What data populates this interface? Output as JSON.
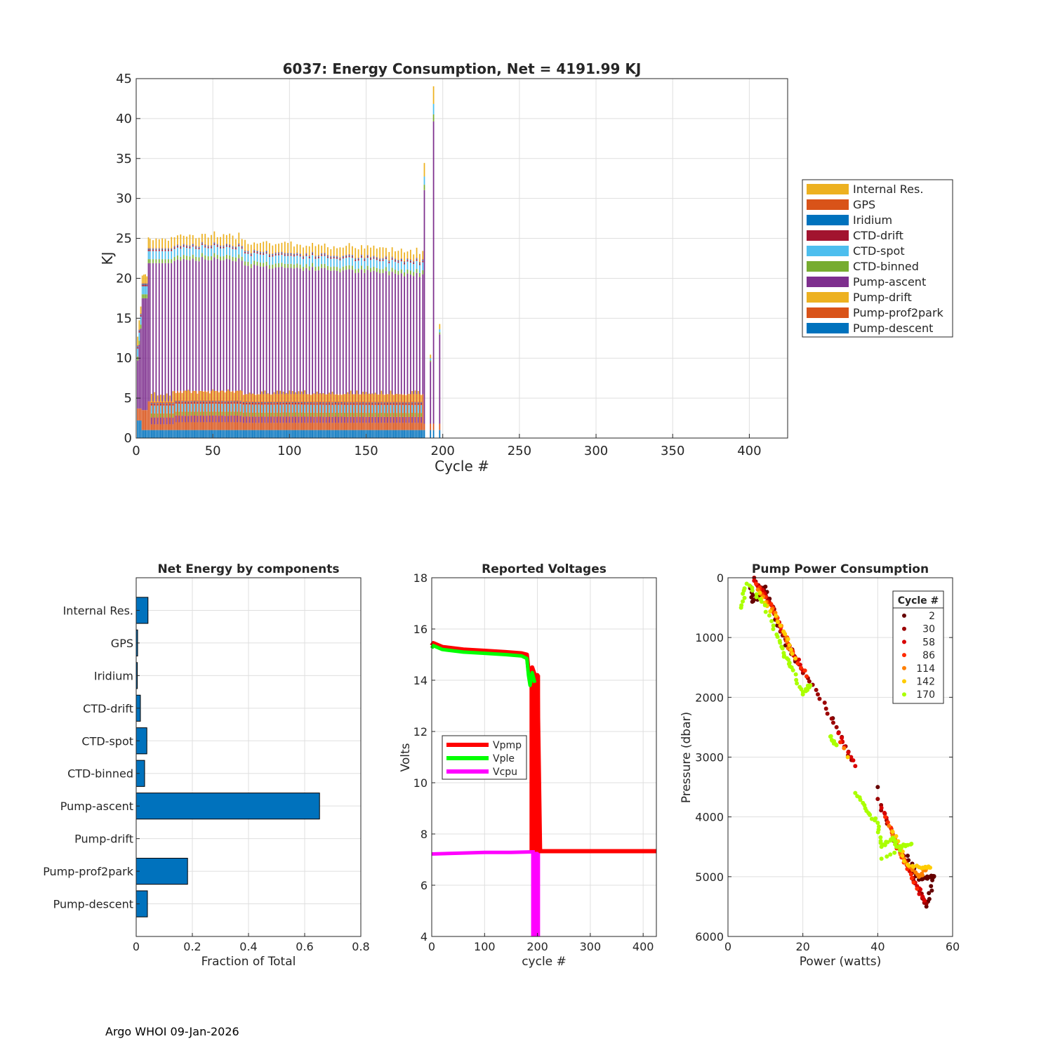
{
  "footer": "Argo WHOI 09-Jan-2026",
  "colors": {
    "Internal Res.": "#edb120",
    "GPS": "#d95319",
    "Iridium": "#0072bd",
    "CTD-drift": "#a2142f",
    "CTD-spot": "#4dbeee",
    "CTD-binned": "#77ac30",
    "Pump-ascent": "#7e2f8e",
    "Pump-drift": "#edb120",
    "Pump-prof2park": "#d95319",
    "Pump-descent": "#0072bd",
    "bar": "#0072bd",
    "Vpmp": "#ff0000",
    "Vple": "#00ff00",
    "Vcpu": "#ff00ff"
  },
  "chart_data": [
    {
      "type": "bar",
      "stacked": true,
      "title": "6037: Energy Consumption,  Net = 4191.99 KJ",
      "xlabel": "Cycle #",
      "ylabel": "KJ",
      "xlim": [
        0,
        425
      ],
      "ylim": [
        0,
        45
      ],
      "xticks": [
        0,
        50,
        100,
        150,
        200,
        250,
        300,
        350,
        400
      ],
      "yticks": [
        0,
        5,
        10,
        15,
        20,
        25,
        30,
        35,
        40,
        45
      ],
      "grid": true,
      "legend_location": "outside-right",
      "legend": [
        "Internal Res.",
        "GPS",
        "Iridium",
        "CTD-drift",
        "CTD-spot",
        "CTD-binned",
        "Pump-ascent",
        "Pump-drift",
        "Pump-prof2park",
        "Pump-descent"
      ],
      "typical_cycle_kJ": {
        "Pump-descent": 1.0,
        "Pump-prof2park": 4.5,
        "Pump-drift": 0.0,
        "Pump-ascent": 16.5,
        "CTD-binned": 0.5,
        "CTD-spot": 1.0,
        "CTD-drift": 0.2,
        "Iridium": 0.1,
        "GPS": 0.1,
        "Internal Res.": 1.0
      },
      "cycle_range": [
        1,
        188
      ],
      "typical_total_range": [
        22.5,
        25.5
      ],
      "outliers": [
        {
          "cycle": 188,
          "total": 34.0
        },
        {
          "cycle": 192,
          "total": 9.0
        },
        {
          "cycle": 194,
          "total": 44.0
        },
        {
          "cycle": 198,
          "total": 13.0
        }
      ]
    },
    {
      "type": "bar",
      "orientation": "horizontal",
      "title": "Net Energy by components",
      "xlabel": "Fraction of Total",
      "ylabel": "",
      "xlim": [
        0,
        0.8
      ],
      "xticks": [
        0,
        0.2,
        0.4,
        0.6,
        0.8
      ],
      "xtick_labels": [
        "0",
        "0.2",
        "0.4",
        "0.6",
        "0.8"
      ],
      "grid": true,
      "categories": [
        "Internal Res.",
        "GPS",
        "Iridium",
        "CTD-drift",
        "CTD-spot",
        "CTD-binned",
        "Pump-ascent",
        "Pump-drift",
        "Pump-prof2park",
        "Pump-descent"
      ],
      "values": [
        0.042,
        0.005,
        0.004,
        0.015,
        0.038,
        0.03,
        0.653,
        0.0,
        0.183,
        0.04
      ]
    },
    {
      "type": "line",
      "title": "Reported Voltages",
      "xlabel": "cycle #",
      "ylabel": "Volts",
      "xlim": [
        0,
        425
      ],
      "ylim": [
        4,
        18
      ],
      "xticks": [
        0,
        100,
        200,
        300,
        400
      ],
      "yticks": [
        4,
        6,
        8,
        10,
        12,
        14,
        16,
        18
      ],
      "grid": true,
      "legend_location": "left-middle",
      "series": [
        {
          "name": "Vpmp",
          "x": [
            0,
            3,
            20,
            60,
            100,
            140,
            170,
            180,
            183,
            186,
            190,
            195,
            200,
            205,
            425
          ],
          "y": [
            15.35,
            15.45,
            15.3,
            15.2,
            15.15,
            15.1,
            15.05,
            15.0,
            14.4,
            14.0,
            14.5,
            14.2,
            14.2,
            7.33,
            7.33
          ]
        },
        {
          "name": "Vple",
          "x": [
            0,
            3,
            20,
            60,
            100,
            140,
            170,
            180,
            183,
            186,
            190,
            195
          ],
          "y": [
            15.25,
            15.35,
            15.2,
            15.1,
            15.05,
            15.0,
            14.95,
            14.85,
            14.2,
            13.8,
            14.3,
            13.9
          ]
        },
        {
          "name": "Vcpu",
          "x": [
            0,
            50,
            100,
            150,
            190,
            195
          ],
          "y": [
            7.22,
            7.25,
            7.28,
            7.28,
            7.3,
            7.3
          ]
        }
      ],
      "dropouts": [
        {
          "name": "Vpmp",
          "x_range": [
            185,
            205
          ],
          "y_range": [
            7.3,
            14.2
          ]
        },
        {
          "name": "Vcpu",
          "x_range": [
            188,
            205
          ],
          "y_range": [
            4,
            7.3
          ]
        }
      ]
    },
    {
      "type": "scatter",
      "title": "Pump Power Consumption",
      "xlabel": "Power (watts)",
      "ylabel": "Pressure (dbar)",
      "xlim": [
        0,
        60
      ],
      "ylim": [
        0,
        6000
      ],
      "y_reversed": true,
      "xticks": [
        0,
        20,
        40,
        60
      ],
      "yticks": [
        0,
        1000,
        2000,
        3000,
        4000,
        5000,
        6000
      ],
      "grid": true,
      "legend_title": "Cycle #",
      "legend_location": "top-right",
      "series": [
        {
          "name": "2",
          "color": "#660000",
          "points": [
            [
              6,
              150
            ],
            [
              6.5,
              400
            ],
            [
              9,
              300
            ],
            [
              10,
              150
            ],
            [
              14,
              900
            ],
            [
              18,
              1400
            ],
            [
              28,
              2350
            ],
            [
              40,
              3500
            ],
            [
              48,
              4650
            ],
            [
              51,
              5050
            ],
            [
              54,
              5000
            ],
            [
              55,
              5000
            ],
            [
              53,
              5500
            ]
          ]
        },
        {
          "name": "30",
          "color": "#9b0000",
          "points": [
            [
              7,
              0
            ],
            [
              11,
              400
            ],
            [
              14.5,
              900
            ],
            [
              19,
              1450
            ],
            [
              24,
              1950
            ],
            [
              29,
              2500
            ],
            [
              33,
              3050
            ],
            [
              40,
              3700
            ],
            [
              44,
              4300
            ],
            [
              49,
              4950
            ],
            [
              52,
              5350
            ],
            [
              53,
              5450
            ]
          ]
        },
        {
          "name": "58",
          "color": "#d90000",
          "points": [
            [
              7,
              50
            ],
            [
              11.5,
              450
            ],
            [
              15,
              950
            ],
            [
              20,
              1550
            ],
            [
              29.5,
              2600
            ],
            [
              34,
              3150
            ],
            [
              41,
              3850
            ],
            [
              45,
              4450
            ],
            [
              50,
              5100
            ],
            [
              52.5,
              5400
            ]
          ]
        },
        {
          "name": "86",
          "color": "#ff2a00",
          "points": [
            [
              7.5,
              100
            ],
            [
              12,
              500
            ],
            [
              16,
              1100
            ],
            [
              21,
              1650
            ],
            [
              30,
              2750
            ],
            [
              42,
              4000
            ],
            [
              46,
              4600
            ],
            [
              50.5,
              5200
            ]
          ]
        },
        {
          "name": "114",
          "color": "#ff7f00",
          "points": [
            [
              8,
              200
            ],
            [
              13,
              650
            ],
            [
              17,
              1250
            ],
            [
              31,
              2850
            ],
            [
              43,
              4150
            ],
            [
              47,
              4700
            ],
            [
              51,
              5000
            ],
            [
              53,
              4850
            ]
          ]
        },
        {
          "name": "142",
          "color": "#ffcc00",
          "points": [
            [
              8.5,
              250
            ],
            [
              14,
              800
            ],
            [
              18,
              1350
            ],
            [
              32,
              3000
            ],
            [
              44,
              4250
            ],
            [
              48,
              4800
            ],
            [
              52,
              4850
            ],
            [
              54,
              4850
            ]
          ]
        },
        {
          "name": "170",
          "color": "#aaff00",
          "points": [
            [
              3.5,
              500
            ],
            [
              5,
              100
            ],
            [
              9,
              400
            ],
            [
              13,
              950
            ],
            [
              15,
              1300
            ],
            [
              17,
              1500
            ],
            [
              20,
              1950
            ],
            [
              22,
              1800
            ],
            [
              27.5,
              2650
            ],
            [
              29,
              2800
            ],
            [
              34,
              3600
            ],
            [
              37,
              3900
            ],
            [
              40,
              4100
            ],
            [
              41,
              4500
            ],
            [
              44,
              4350
            ],
            [
              45,
              4500
            ],
            [
              49,
              4450
            ],
            [
              41,
              4700
            ]
          ]
        }
      ]
    }
  ]
}
